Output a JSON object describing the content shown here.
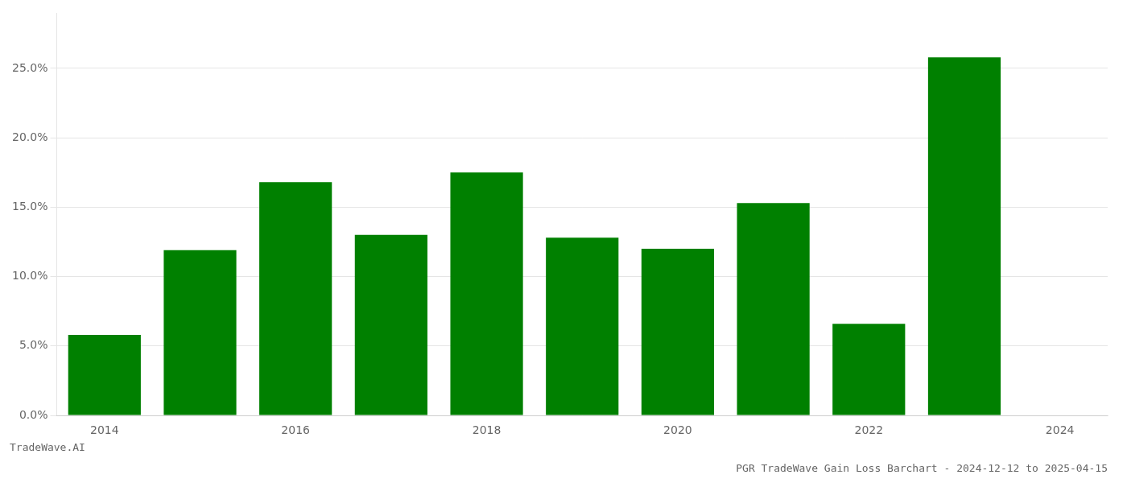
{
  "chart_data": {
    "type": "bar",
    "title": "PGR TradeWave Gain Loss Barchart - 2024-12-12 to 2025-04-15",
    "subtitle": "TradeWave.AI",
    "categories": [
      "2014",
      null,
      "2016",
      null,
      "2018",
      null,
      "2020",
      null,
      "2022",
      null,
      "2024"
    ],
    "values": [
      0.058,
      0.119,
      0.168,
      0.13,
      0.175,
      0.128,
      0.12,
      0.153,
      0.066,
      0.258,
      null
    ],
    "color": "#008000",
    "ylim": [
      0,
      0.29
    ],
    "yticks": [
      {
        "value": 0.0,
        "label": "0.0%"
      },
      {
        "value": 0.05,
        "label": "5.0%"
      },
      {
        "value": 0.1,
        "label": "10.0%"
      },
      {
        "value": 0.15,
        "label": "15.0%"
      },
      {
        "value": 0.2,
        "label": "20.0%"
      },
      {
        "value": 0.25,
        "label": "25.0%"
      }
    ],
    "grid": true
  }
}
